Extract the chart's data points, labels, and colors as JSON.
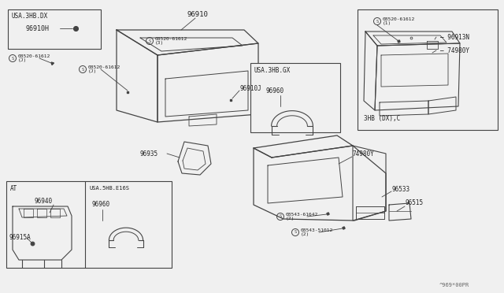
{
  "bg_color": "#f0f0f0",
  "line_color": "#444444",
  "text_color": "#222222",
  "watermark": "^969*00PR",
  "label_96910": "96910",
  "label_96910J": "96910J",
  "label_96935": "96935",
  "label_74980Y": "74980Y",
  "label_96533": "96533",
  "label_96515": "96515",
  "screw_08520_3": "08520-61612\n(3)",
  "screw_08520_J": "08520-61612\n(J)",
  "screw_08543_61642": "08543-61642\n(2)",
  "screw_08543_51012": "08543-51012\n(2)",
  "inset_tl_title": "USA.3HB.DX",
  "inset_tl_p1": "96910H",
  "inset_tl_screw": "08520-61612\n(J)",
  "inset_cx_title": "USA.3HB.GX",
  "inset_cx_p1": "96960",
  "inset_tr_title": "3HB (DX),C",
  "inset_tr_screw": "08520-61612\n(1)",
  "inset_tr_p1": "96913N",
  "inset_tr_p2": "74980Y",
  "inset_bl_at": "AT",
  "inset_bl_usa": "USA.5HB.E16S",
  "inset_bl_p1": "96940",
  "inset_bl_p2": "96915A",
  "inset_bl_p3": "96960"
}
